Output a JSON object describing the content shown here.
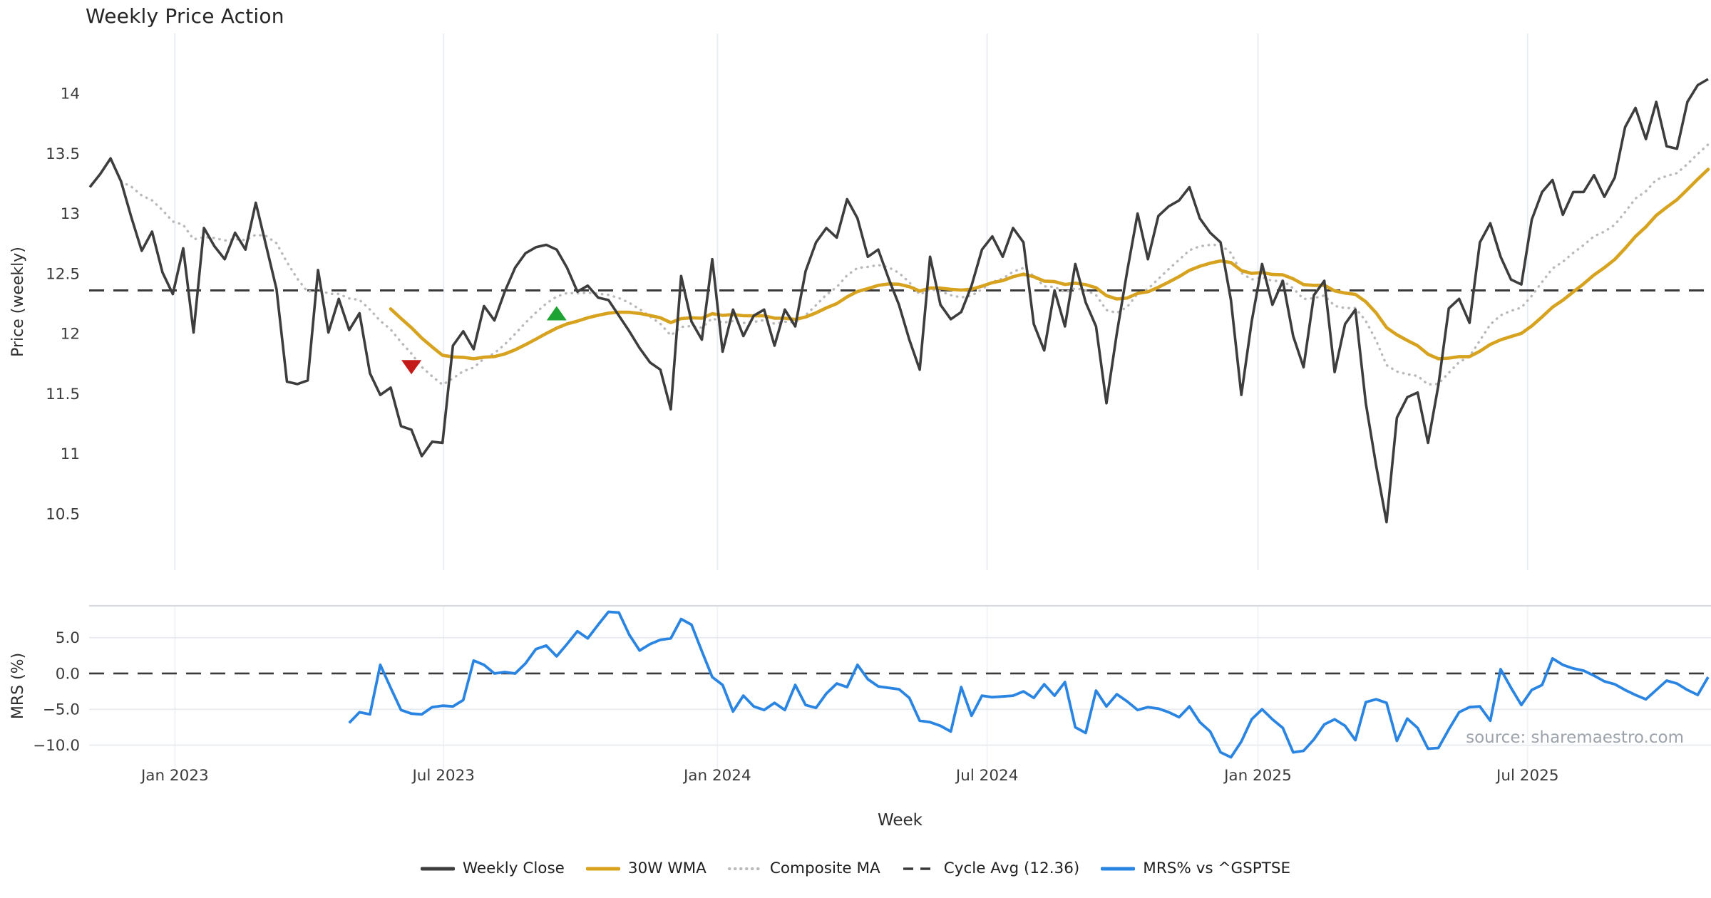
{
  "title": "Weekly Price Action",
  "source_note": "source: sharemaestro.com",
  "legend": [
    {
      "label": "Weekly Close",
      "color": "#3d3d3d",
      "style": "solid"
    },
    {
      "label": "30W WMA",
      "color": "#d7a21e",
      "style": "solid"
    },
    {
      "label": "Composite MA",
      "color": "#b9b9b9",
      "style": "dotted"
    },
    {
      "label": "Cycle Avg (12.36)",
      "color": "#3a3a3a",
      "style": "dashed"
    },
    {
      "label": "MRS% vs ^GSPTSE",
      "color": "#2a85e2",
      "style": "solid"
    }
  ],
  "chart_data": {
    "type": "line",
    "title": "Weekly Price Action",
    "x_axis": {
      "label": "Week",
      "unit": "week_index",
      "ticks": [
        {
          "label": "Jan 2023",
          "week": 8.2
        },
        {
          "label": "Jul 2023",
          "week": 34.1
        },
        {
          "label": "Jan 2024",
          "week": 60.5
        },
        {
          "label": "Jul 2024",
          "week": 86.5
        },
        {
          "label": "Jan 2025",
          "week": 112.6
        },
        {
          "label": "Jul 2025",
          "week": 138.6
        }
      ]
    },
    "panels": [
      {
        "name": "price",
        "ylabel": "Price (weekly)",
        "ylim": [
          10.03,
          14.5
        ],
        "yticks": [
          14,
          13.5,
          13,
          12.5,
          12,
          11.5,
          11,
          10.5
        ],
        "ytick_labels": [
          "14",
          "13.5",
          "13",
          "12.5",
          "12",
          "11.5",
          "11",
          "10.5"
        ],
        "grid": "vertical-months-only",
        "series": [
          {
            "name": "Weekly Close",
            "color": "#3d3d3d",
            "style": "solid",
            "start_week": 0,
            "values": [
              13.22,
              13.33,
              13.46,
              13.27,
              12.97,
              12.69,
              12.85,
              12.51,
              12.33,
              12.71,
              12.01,
              12.88,
              12.73,
              12.62,
              12.84,
              12.7,
              13.09,
              12.73,
              12.37,
              11.6,
              11.58,
              11.61,
              12.53,
              12.01,
              12.29,
              12.03,
              12.17,
              11.67,
              11.49,
              11.55,
              11.23,
              11.2,
              10.98,
              11.1,
              11.09,
              11.9,
              12.02,
              11.87,
              12.23,
              12.11,
              12.35,
              12.55,
              12.67,
              12.72,
              12.74,
              12.7,
              12.55,
              12.35,
              12.4,
              12.3,
              12.28,
              12.15,
              12.02,
              11.88,
              11.76,
              11.7,
              11.37,
              12.48,
              12.1,
              11.95,
              12.62,
              11.85,
              12.2,
              11.98,
              12.15,
              12.2,
              11.9,
              12.2,
              12.06,
              12.52,
              12.76,
              12.88,
              12.8,
              13.12,
              12.96,
              12.64,
              12.7,
              12.46,
              12.24,
              11.95,
              11.7,
              12.64,
              12.24,
              12.12,
              12.18,
              12.4,
              12.7,
              12.81,
              12.64,
              12.88,
              12.76,
              12.08,
              11.86,
              12.36,
              12.06,
              12.58,
              12.26,
              12.06,
              11.42,
              12.0,
              12.52,
              13.0,
              12.62,
              12.98,
              13.06,
              13.11,
              13.22,
              12.96,
              12.84,
              12.76,
              12.28,
              11.49,
              12.1,
              12.58,
              12.24,
              12.44,
              11.98,
              11.72,
              12.32,
              12.44,
              11.68,
              12.08,
              12.2,
              11.42,
              10.9,
              10.43,
              11.3,
              11.47,
              11.51,
              11.09,
              11.57,
              12.21,
              12.29,
              12.09,
              12.76,
              12.92,
              12.64,
              12.45,
              12.41,
              12.95,
              13.18,
              13.28,
              12.99,
              13.18,
              13.18,
              13.32,
              13.14,
              13.3,
              13.72,
              13.88,
              13.62,
              13.93,
              13.56,
              13.54,
              13.93,
              14.07,
              14.12
            ]
          },
          {
            "name": "30W WMA",
            "color": "#d7a21e",
            "style": "solid",
            "start_week": 29,
            "derived": "wma30(Weekly Close)"
          },
          {
            "name": "Composite MA",
            "color": "#b9b9b9",
            "style": "dotted",
            "start_week": 3,
            "derived": "avg(ema10, ema20)(Weekly Close)"
          },
          {
            "name": "Cycle Avg (12.36)",
            "color": "#3a3a3a",
            "style": "dashed",
            "value": 12.36
          }
        ],
        "markers": [
          {
            "shape": "triangle-down",
            "meaning": "sell-signal",
            "color": "#c41a1a",
            "week": 31,
            "value": 11.72
          },
          {
            "shape": "triangle-up",
            "meaning": "buy-signal",
            "color": "#1da331",
            "week": 45,
            "value": 12.17
          }
        ]
      },
      {
        "name": "mrs",
        "ylabel": "MRS (%)",
        "ylim": [
          -11.94,
          9.45
        ],
        "yticks": [
          5.0,
          0.0,
          -5.0,
          -10.0
        ],
        "ytick_labels": [
          "5.0",
          "0.0",
          "−5.0",
          "−10.0"
        ],
        "zero_line": 0.0,
        "series": [
          {
            "name": "MRS% vs ^GSPTSE",
            "color": "#2a85e2",
            "style": "solid",
            "start_week": 25,
            "values": [
              -6.9,
              -5.4,
              -5.7,
              1.2,
              -2.0,
              -5.1,
              -5.6,
              -5.7,
              -4.7,
              -4.5,
              -4.6,
              -3.7,
              1.8,
              1.2,
              0.0,
              0.2,
              0.0,
              1.4,
              3.4,
              3.9,
              2.4,
              4.1,
              5.9,
              4.9,
              6.8,
              8.6,
              8.5,
              5.4,
              3.2,
              4.1,
              4.7,
              4.9,
              7.6,
              6.8,
              3.1,
              -0.5,
              -1.6,
              -5.3,
              -3.1,
              -4.6,
              -5.1,
              -4.1,
              -5.1,
              -1.6,
              -4.4,
              -4.8,
              -2.8,
              -1.4,
              -1.9,
              1.2,
              -0.8,
              -1.8,
              -2.0,
              -2.2,
              -3.4,
              -6.6,
              -6.8,
              -7.3,
              -8.1,
              -1.9,
              -5.9,
              -3.1,
              -3.3,
              -3.2,
              -3.1,
              -2.5,
              -3.4,
              -1.5,
              -3.1,
              -1.2,
              -7.5,
              -8.3,
              -2.4,
              -4.6,
              -2.9,
              -3.9,
              -5.1,
              -4.7,
              -4.9,
              -5.4,
              -6.1,
              -4.6,
              -6.8,
              -8.1,
              -11.0,
              -11.7,
              -9.5,
              -6.4,
              -5.0,
              -6.4,
              -7.6,
              -11.0,
              -10.8,
              -9.2,
              -7.1,
              -6.4,
              -7.3,
              -9.3,
              -4.0,
              -3.6,
              -4.1,
              -9.4,
              -6.3,
              -7.6,
              -10.5,
              -10.4,
              -7.8,
              -5.4,
              -4.7,
              -4.6,
              -6.6,
              0.6,
              -2.0,
              -4.4,
              -2.3,
              -1.6,
              2.1,
              1.2,
              0.7,
              0.4,
              -0.3,
              -1.1,
              -1.5,
              -2.3,
              -3.0,
              -3.6,
              -2.3,
              -1.0,
              -1.4,
              -2.3,
              -3.0,
              -0.5
            ]
          }
        ]
      }
    ]
  }
}
